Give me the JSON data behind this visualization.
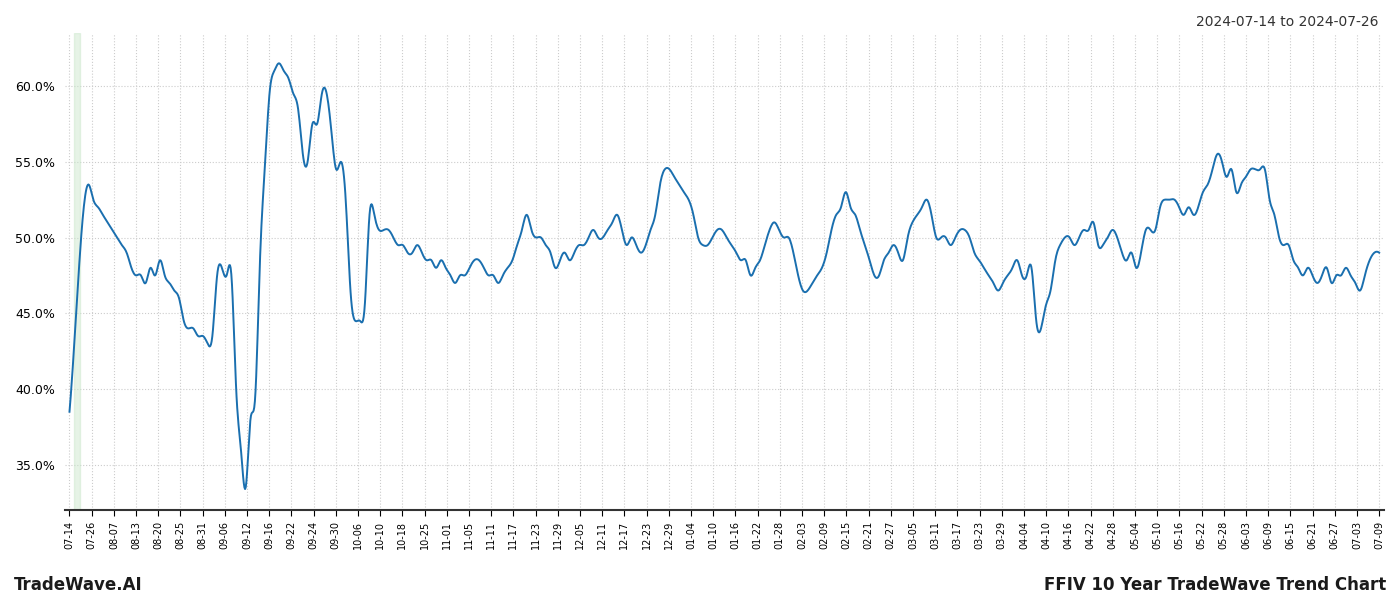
{
  "title_top_right": "2024-07-14 to 2024-07-26",
  "title_bottom_left": "TradeWave.AI",
  "title_bottom_right": "FFIV 10 Year TradeWave Trend Chart",
  "background_color": "#ffffff",
  "line_color": "#1a6faf",
  "line_width": 1.4,
  "highlight_color": "#c8e6c9",
  "highlight_alpha": 0.45,
  "ylim": [
    32.0,
    63.5
  ],
  "yticks": [
    35.0,
    40.0,
    45.0,
    50.0,
    55.0,
    60.0
  ],
  "grid_color": "#cccccc",
  "x_labels": [
    "07-14",
    "07-26",
    "08-07",
    "08-13",
    "08-20",
    "08-25",
    "08-31",
    "09-06",
    "09-12",
    "09-16",
    "09-22",
    "09-24",
    "09-30",
    "10-06",
    "10-10",
    "10-18",
    "10-25",
    "11-01",
    "11-05",
    "11-11",
    "11-17",
    "11-23",
    "11-29",
    "12-05",
    "12-11",
    "12-17",
    "12-23",
    "12-29",
    "01-04",
    "01-10",
    "01-16",
    "01-22",
    "01-28",
    "02-03",
    "02-09",
    "02-15",
    "02-21",
    "02-27",
    "03-05",
    "03-11",
    "03-17",
    "03-23",
    "03-29",
    "04-04",
    "04-10",
    "04-16",
    "04-22",
    "04-28",
    "05-04",
    "05-10",
    "05-16",
    "05-22",
    "05-28",
    "06-03",
    "06-09",
    "06-15",
    "06-21",
    "06-27",
    "07-03",
    "07-09"
  ],
  "key_points": [
    [
      0,
      38.5
    ],
    [
      2,
      48.0
    ],
    [
      3,
      52.0
    ],
    [
      4,
      53.5
    ],
    [
      5,
      52.5
    ],
    [
      6,
      52.0
    ],
    [
      7,
      51.5
    ],
    [
      8,
      51.0
    ],
    [
      9,
      50.5
    ],
    [
      10,
      50.0
    ],
    [
      11,
      49.5
    ],
    [
      12,
      49.0
    ],
    [
      13,
      48.0
    ],
    [
      14,
      47.5
    ],
    [
      15,
      47.5
    ],
    [
      16,
      47.0
    ],
    [
      17,
      48.0
    ],
    [
      18,
      47.5
    ],
    [
      19,
      48.5
    ],
    [
      20,
      47.5
    ],
    [
      21,
      47.0
    ],
    [
      22,
      46.5
    ],
    [
      23,
      46.0
    ],
    [
      24,
      44.5
    ],
    [
      25,
      44.0
    ],
    [
      26,
      44.0
    ],
    [
      27,
      43.5
    ],
    [
      28,
      43.5
    ],
    [
      29,
      43.0
    ],
    [
      30,
      43.5
    ],
    [
      31,
      47.5
    ],
    [
      32,
      48.0
    ],
    [
      33,
      47.5
    ],
    [
      34,
      47.5
    ],
    [
      35,
      40.0
    ],
    [
      36,
      36.0
    ],
    [
      37,
      33.5
    ],
    [
      38,
      38.0
    ],
    [
      39,
      39.5
    ],
    [
      40,
      48.5
    ],
    [
      41,
      54.5
    ],
    [
      42,
      59.5
    ],
    [
      43,
      61.0
    ],
    [
      44,
      61.5
    ],
    [
      45,
      61.0
    ],
    [
      46,
      60.5
    ],
    [
      47,
      59.5
    ],
    [
      48,
      58.5
    ],
    [
      49,
      55.5
    ],
    [
      50,
      55.0
    ],
    [
      51,
      57.5
    ],
    [
      52,
      57.5
    ],
    [
      53,
      59.5
    ],
    [
      54,
      59.5
    ],
    [
      55,
      57.0
    ],
    [
      56,
      54.5
    ],
    [
      57,
      55.0
    ],
    [
      58,
      52.5
    ],
    [
      59,
      46.5
    ],
    [
      60,
      44.5
    ],
    [
      61,
      44.5
    ],
    [
      62,
      45.5
    ],
    [
      63,
      51.5
    ],
    [
      64,
      51.5
    ],
    [
      65,
      50.5
    ],
    [
      66,
      50.5
    ],
    [
      67,
      50.5
    ],
    [
      68,
      50.0
    ],
    [
      69,
      49.5
    ],
    [
      70,
      49.5
    ],
    [
      71,
      49.0
    ],
    [
      72,
      49.0
    ],
    [
      73,
      49.5
    ],
    [
      74,
      49.0
    ],
    [
      75,
      48.5
    ],
    [
      76,
      48.5
    ],
    [
      77,
      48.0
    ],
    [
      78,
      48.5
    ],
    [
      79,
      48.0
    ],
    [
      80,
      47.5
    ],
    [
      81,
      47.0
    ],
    [
      82,
      47.5
    ],
    [
      83,
      47.5
    ],
    [
      84,
      48.0
    ],
    [
      85,
      48.5
    ],
    [
      86,
      48.5
    ],
    [
      87,
      48.0
    ],
    [
      88,
      47.5
    ],
    [
      89,
      47.5
    ],
    [
      90,
      47.0
    ],
    [
      91,
      47.5
    ],
    [
      92,
      48.0
    ],
    [
      93,
      48.5
    ],
    [
      94,
      49.5
    ],
    [
      95,
      50.5
    ],
    [
      96,
      51.5
    ],
    [
      97,
      50.5
    ],
    [
      98,
      50.0
    ],
    [
      99,
      50.0
    ],
    [
      100,
      49.5
    ],
    [
      101,
      49.0
    ],
    [
      102,
      48.0
    ],
    [
      103,
      48.5
    ],
    [
      104,
      49.0
    ],
    [
      105,
      48.5
    ],
    [
      106,
      49.0
    ],
    [
      107,
      49.5
    ],
    [
      108,
      49.5
    ],
    [
      109,
      50.0
    ],
    [
      110,
      50.5
    ],
    [
      111,
      50.0
    ],
    [
      112,
      50.0
    ],
    [
      113,
      50.5
    ],
    [
      114,
      51.0
    ],
    [
      115,
      51.5
    ],
    [
      116,
      50.5
    ],
    [
      117,
      49.5
    ],
    [
      118,
      50.0
    ],
    [
      119,
      49.5
    ],
    [
      120,
      49.0
    ],
    [
      121,
      49.5
    ],
    [
      122,
      50.5
    ],
    [
      123,
      51.5
    ],
    [
      124,
      53.5
    ],
    [
      125,
      54.5
    ],
    [
      126,
      54.5
    ],
    [
      127,
      54.0
    ],
    [
      128,
      53.5
    ],
    [
      129,
      53.0
    ],
    [
      130,
      52.5
    ],
    [
      131,
      51.5
    ],
    [
      132,
      50.0
    ],
    [
      133,
      49.5
    ],
    [
      134,
      49.5
    ],
    [
      135,
      50.0
    ],
    [
      136,
      50.5
    ],
    [
      137,
      50.5
    ],
    [
      138,
      50.0
    ],
    [
      139,
      49.5
    ],
    [
      140,
      49.0
    ],
    [
      141,
      48.5
    ],
    [
      142,
      48.5
    ],
    [
      143,
      47.5
    ],
    [
      144,
      48.0
    ],
    [
      145,
      48.5
    ],
    [
      146,
      49.5
    ],
    [
      147,
      50.5
    ],
    [
      148,
      51.0
    ],
    [
      149,
      50.5
    ],
    [
      150,
      50.0
    ],
    [
      151,
      50.0
    ],
    [
      152,
      49.0
    ],
    [
      153,
      47.5
    ],
    [
      154,
      46.5
    ],
    [
      155,
      46.5
    ],
    [
      156,
      47.0
    ],
    [
      157,
      47.5
    ],
    [
      158,
      48.0
    ],
    [
      159,
      49.0
    ],
    [
      160,
      50.5
    ],
    [
      161,
      51.5
    ],
    [
      162,
      52.0
    ],
    [
      163,
      53.0
    ],
    [
      164,
      52.0
    ],
    [
      165,
      51.5
    ],
    [
      166,
      50.5
    ],
    [
      167,
      49.5
    ],
    [
      168,
      48.5
    ],
    [
      169,
      47.5
    ],
    [
      170,
      47.5
    ],
    [
      171,
      48.5
    ],
    [
      172,
      49.0
    ],
    [
      173,
      49.5
    ],
    [
      174,
      49.0
    ],
    [
      175,
      48.5
    ],
    [
      176,
      50.0
    ],
    [
      177,
      51.0
    ],
    [
      178,
      51.5
    ],
    [
      179,
      52.0
    ],
    [
      180,
      52.5
    ],
    [
      181,
      51.5
    ],
    [
      182,
      50.0
    ],
    [
      183,
      50.0
    ],
    [
      184,
      50.0
    ],
    [
      185,
      49.5
    ],
    [
      186,
      50.0
    ],
    [
      187,
      50.5
    ],
    [
      188,
      50.5
    ],
    [
      189,
      50.0
    ],
    [
      190,
      49.0
    ],
    [
      191,
      48.5
    ],
    [
      192,
      48.0
    ],
    [
      193,
      47.5
    ],
    [
      194,
      47.0
    ],
    [
      195,
      46.5
    ],
    [
      196,
      47.0
    ],
    [
      197,
      47.5
    ],
    [
      198,
      48.0
    ],
    [
      199,
      48.5
    ],
    [
      200,
      47.5
    ],
    [
      201,
      47.5
    ],
    [
      202,
      48.0
    ],
    [
      203,
      44.5
    ],
    [
      204,
      44.0
    ],
    [
      205,
      45.5
    ],
    [
      206,
      46.5
    ],
    [
      207,
      48.5
    ],
    [
      208,
      49.5
    ],
    [
      209,
      50.0
    ],
    [
      210,
      50.0
    ],
    [
      211,
      49.5
    ],
    [
      212,
      50.0
    ],
    [
      213,
      50.5
    ],
    [
      214,
      50.5
    ],
    [
      215,
      51.0
    ],
    [
      216,
      49.5
    ],
    [
      217,
      49.5
    ],
    [
      218,
      50.0
    ],
    [
      219,
      50.5
    ],
    [
      220,
      50.0
    ],
    [
      221,
      49.0
    ],
    [
      222,
      48.5
    ],
    [
      223,
      49.0
    ],
    [
      224,
      48.0
    ],
    [
      225,
      49.0
    ],
    [
      226,
      50.5
    ],
    [
      227,
      50.5
    ],
    [
      228,
      50.5
    ],
    [
      229,
      52.0
    ],
    [
      230,
      52.5
    ],
    [
      231,
      52.5
    ],
    [
      232,
      52.5
    ],
    [
      233,
      52.0
    ],
    [
      234,
      51.5
    ],
    [
      235,
      52.0
    ],
    [
      236,
      51.5
    ],
    [
      237,
      52.0
    ],
    [
      238,
      53.0
    ],
    [
      239,
      53.5
    ],
    [
      240,
      54.5
    ],
    [
      241,
      55.5
    ],
    [
      242,
      55.0
    ],
    [
      243,
      54.0
    ],
    [
      244,
      54.5
    ],
    [
      245,
      53.0
    ],
    [
      246,
      53.5
    ],
    [
      247,
      54.0
    ],
    [
      248,
      54.5
    ],
    [
      249,
      54.5
    ],
    [
      250,
      54.5
    ],
    [
      251,
      54.5
    ],
    [
      252,
      52.5
    ],
    [
      253,
      51.5
    ],
    [
      254,
      50.0
    ],
    [
      255,
      49.5
    ],
    [
      256,
      49.5
    ],
    [
      257,
      48.5
    ],
    [
      258,
      48.0
    ],
    [
      259,
      47.5
    ],
    [
      260,
      48.0
    ],
    [
      261,
      47.5
    ],
    [
      262,
      47.0
    ],
    [
      263,
      47.5
    ],
    [
      264,
      48.0
    ],
    [
      265,
      47.0
    ],
    [
      266,
      47.5
    ],
    [
      267,
      47.5
    ],
    [
      268,
      48.0
    ],
    [
      269,
      47.5
    ],
    [
      270,
      47.0
    ],
    [
      271,
      46.5
    ],
    [
      272,
      47.5
    ],
    [
      273,
      48.5
    ],
    [
      274,
      49.0
    ],
    [
      275,
      49.0
    ]
  ]
}
